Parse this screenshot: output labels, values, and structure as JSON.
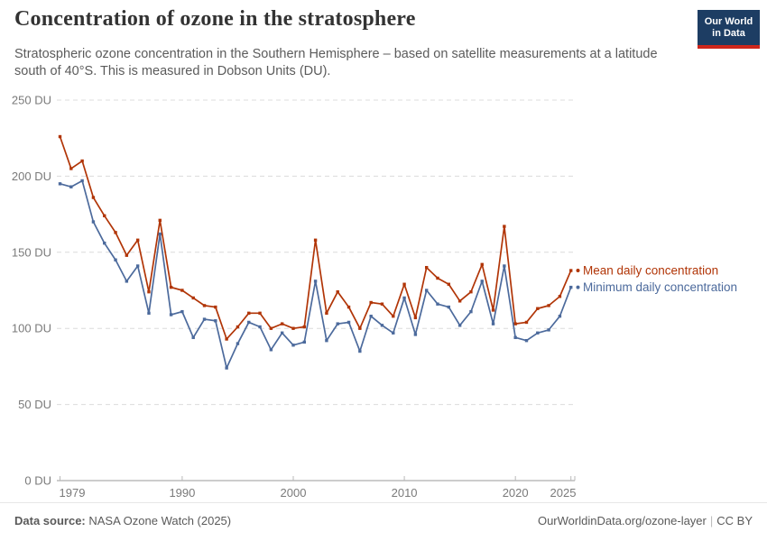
{
  "header": {
    "title": "Concentration of ozone in the stratosphere",
    "subtitle": "Stratospheric ozone concentration in the Southern Hemisphere – based on satellite measurements at a latitude south of 40°S. This is measured in Dobson Units (DU).",
    "logo": {
      "line1": "Our World",
      "line2": "in Data"
    }
  },
  "chart_data": {
    "type": "line",
    "x": [
      1979,
      1980,
      1981,
      1982,
      1983,
      1984,
      1985,
      1986,
      1987,
      1988,
      1989,
      1990,
      1991,
      1992,
      1993,
      1994,
      1995,
      1996,
      1997,
      1998,
      1999,
      2000,
      2001,
      2002,
      2003,
      2004,
      2005,
      2006,
      2007,
      2008,
      2009,
      2010,
      2011,
      2012,
      2013,
      2014,
      2015,
      2016,
      2017,
      2018,
      2019,
      2020,
      2021,
      2022,
      2023,
      2024,
      2025
    ],
    "series": [
      {
        "name": "Mean daily concentration",
        "color": "#B13507",
        "values": [
          226,
          205,
          210,
          186,
          174,
          163,
          148,
          158,
          124,
          171,
          127,
          125,
          120,
          115,
          114,
          93,
          101,
          110,
          110,
          100,
          103,
          100,
          101,
          158,
          110,
          124,
          114,
          100,
          117,
          116,
          108,
          129,
          107,
          140,
          133,
          129,
          118,
          124,
          142,
          112,
          167,
          103,
          104,
          113,
          115,
          121,
          138
        ]
      },
      {
        "name": "Minimum daily concentration",
        "color": "#4C6A9C",
        "values": [
          195,
          193,
          197,
          170,
          156,
          145,
          131,
          141,
          110,
          162,
          109,
          111,
          94,
          106,
          105,
          74,
          90,
          104,
          101,
          86,
          97,
          89,
          91,
          131,
          92,
          103,
          104,
          85,
          108,
          102,
          97,
          120,
          96,
          125,
          116,
          114,
          102,
          111,
          131,
          103,
          141,
          94,
          92,
          97,
          99,
          108,
          127
        ]
      }
    ],
    "title": "Concentration of ozone in the stratosphere",
    "xlabel": "",
    "ylabel": "Dobson Units (DU)",
    "unit": "DU",
    "xlim": [
      1979,
      2025
    ],
    "ylim": [
      0,
      250
    ],
    "yticks": [
      0,
      50,
      100,
      150,
      200,
      250
    ],
    "ytick_labels": [
      "0 DU",
      "50 DU",
      "100 DU",
      "150 DU",
      "200 DU",
      "250 DU"
    ],
    "xticks": [
      1979,
      1990,
      2000,
      2010,
      2020,
      2025
    ],
    "xtick_labels": [
      "1979",
      "1990",
      "2000",
      "2010",
      "2020",
      "2025"
    ],
    "grid": "horizontal-dashed",
    "legend_position": "right-of-line-end"
  },
  "footer": {
    "source_label": "Data source:",
    "source_value": " NASA Ozone Watch (2025)",
    "link": "OurWorldinData.org/ozone-layer",
    "separator": "|",
    "license": "CC BY"
  },
  "colors": {
    "mean_line": "#B13507",
    "minimum_line": "#4C6A9C",
    "logo_navy": "#1d3d63",
    "logo_red": "#ce261b",
    "gridline": "#dcdcdc",
    "axis_line": "#999999",
    "axis_text": "#7a7a7a",
    "title_text": "#333333",
    "subtitle_text": "#5b5b5b",
    "footer_text": "#5a5a5a"
  }
}
